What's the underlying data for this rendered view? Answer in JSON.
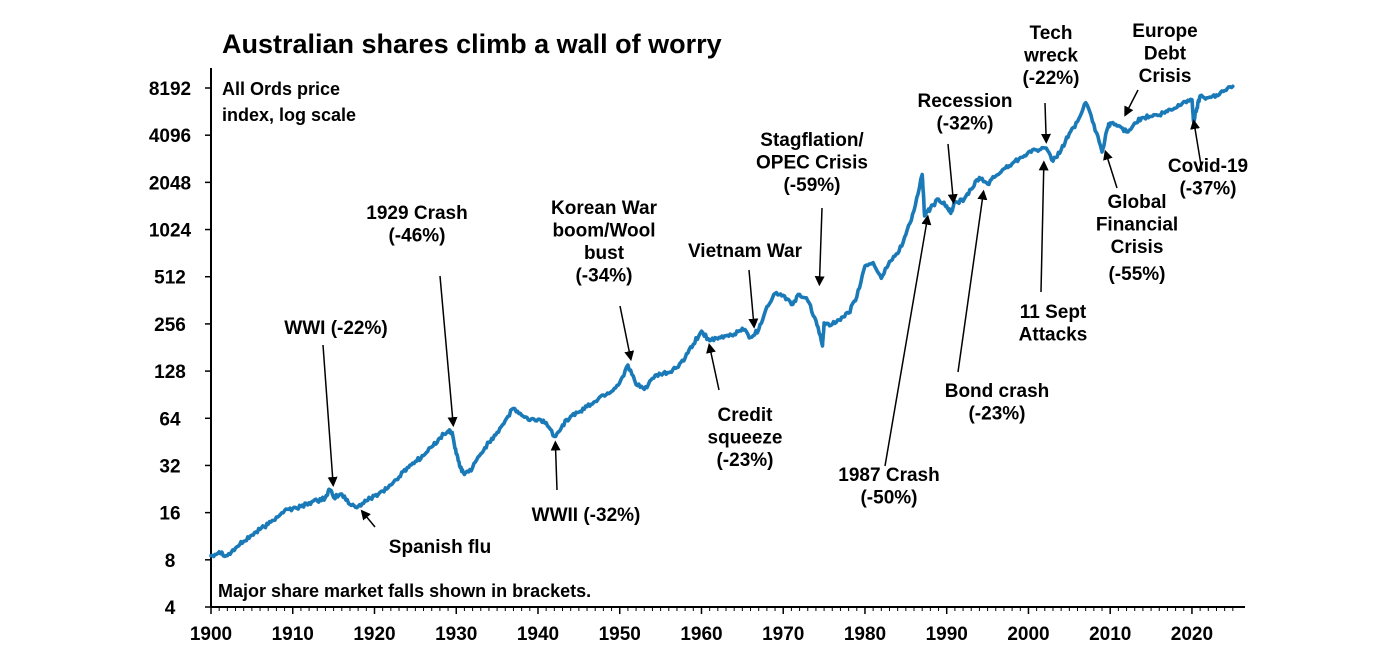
{
  "chart_data": {
    "type": "line",
    "title": "Australian shares climb a wall of worry",
    "subtitle_lines": [
      "All Ords price",
      "index, log scale"
    ],
    "footnote": "Major share market falls shown in brackets.",
    "xlabel": "",
    "ylabel": "",
    "y_scale": "log2",
    "xlim": [
      1900,
      2026
    ],
    "ylim": [
      4,
      11000
    ],
    "x_ticks": [
      "1900",
      "1910",
      "1920",
      "1930",
      "1940",
      "1950",
      "1960",
      "1970",
      "1980",
      "1990",
      "2000",
      "2010",
      "2020"
    ],
    "y_ticks": [
      "4",
      "8",
      "16",
      "32",
      "64",
      "128",
      "256",
      "512",
      "1024",
      "2048",
      "4096",
      "8192"
    ],
    "grid": false,
    "line_color": "#1a7ab8",
    "series": [
      {
        "name": "",
        "points": [
          [
            1900,
            8.5
          ],
          [
            1901,
            9
          ],
          [
            1902,
            8.5
          ],
          [
            1903,
            9.5
          ],
          [
            1904,
            10.5
          ],
          [
            1905,
            11.5
          ],
          [
            1906,
            12.5
          ],
          [
            1907,
            13.5
          ],
          [
            1908,
            15
          ],
          [
            1909,
            16.5
          ],
          [
            1910,
            17
          ],
          [
            1911,
            17.5
          ],
          [
            1912,
            18.5
          ],
          [
            1913,
            19
          ],
          [
            1914,
            20
          ],
          [
            1914.5,
            22.5
          ],
          [
            1915,
            20
          ],
          [
            1916,
            21
          ],
          [
            1917,
            18
          ],
          [
            1918,
            17.5
          ],
          [
            1919,
            19
          ],
          [
            1920,
            20.5
          ],
          [
            1921,
            22
          ],
          [
            1922,
            24
          ],
          [
            1923,
            27
          ],
          [
            1924,
            31
          ],
          [
            1925,
            34
          ],
          [
            1926,
            37
          ],
          [
            1927,
            42
          ],
          [
            1928,
            48
          ],
          [
            1929,
            53
          ],
          [
            1929.5,
            52
          ],
          [
            1930,
            38
          ],
          [
            1930.5,
            31
          ],
          [
            1931,
            28
          ],
          [
            1932,
            31
          ],
          [
            1933,
            38
          ],
          [
            1934,
            45
          ],
          [
            1935,
            52
          ],
          [
            1936,
            62
          ],
          [
            1937,
            74
          ],
          [
            1938,
            67
          ],
          [
            1939,
            62
          ],
          [
            1940,
            63
          ],
          [
            1941,
            60
          ],
          [
            1942,
            49
          ],
          [
            1943,
            58
          ],
          [
            1944,
            66
          ],
          [
            1945,
            70
          ],
          [
            1946,
            76
          ],
          [
            1947,
            82
          ],
          [
            1948,
            90
          ],
          [
            1949,
            95
          ],
          [
            1950,
            108
          ],
          [
            1951,
            140
          ],
          [
            1952,
            105
          ],
          [
            1953,
            98
          ],
          [
            1954,
            115
          ],
          [
            1955,
            122
          ],
          [
            1956,
            125
          ],
          [
            1957,
            135
          ],
          [
            1958,
            155
          ],
          [
            1959,
            190
          ],
          [
            1960,
            230
          ],
          [
            1961,
            200
          ],
          [
            1962,
            205
          ],
          [
            1963,
            215
          ],
          [
            1964,
            220
          ],
          [
            1965,
            240
          ],
          [
            1966,
            210
          ],
          [
            1967,
            235
          ],
          [
            1968,
            330
          ],
          [
            1969,
            400
          ],
          [
            1970,
            390
          ],
          [
            1971,
            340
          ],
          [
            1972,
            395
          ],
          [
            1973,
            360
          ],
          [
            1974,
            270
          ],
          [
            1974.8,
            185
          ],
          [
            1975,
            260
          ],
          [
            1976,
            255
          ],
          [
            1977,
            270
          ],
          [
            1978,
            300
          ],
          [
            1979,
            380
          ],
          [
            1980,
            600
          ],
          [
            1981,
            630
          ],
          [
            1982,
            500
          ],
          [
            1983,
            640
          ],
          [
            1984,
            720
          ],
          [
            1985,
            950
          ],
          [
            1986,
            1350
          ],
          [
            1987,
            2300
          ],
          [
            1987.3,
            1250
          ],
          [
            1988,
            1400
          ],
          [
            1989,
            1600
          ],
          [
            1990,
            1450
          ],
          [
            1990.5,
            1300
          ],
          [
            1991,
            1550
          ],
          [
            1992,
            1550
          ],
          [
            1993,
            1850
          ],
          [
            1994,
            2200
          ],
          [
            1995,
            2000
          ],
          [
            1996,
            2250
          ],
          [
            1997,
            2500
          ],
          [
            1998,
            2700
          ],
          [
            1999,
            2950
          ],
          [
            2000,
            3200
          ],
          [
            2001,
            3300
          ],
          [
            2002,
            3400
          ],
          [
            2003,
            2800
          ],
          [
            2004,
            3300
          ],
          [
            2005,
            4200
          ],
          [
            2006,
            5000
          ],
          [
            2007,
            6600
          ],
          [
            2008,
            4800
          ],
          [
            2009,
            3200
          ],
          [
            2009.7,
            4600
          ],
          [
            2010,
            4900
          ],
          [
            2011,
            4700
          ],
          [
            2012,
            4300
          ],
          [
            2013,
            4900
          ],
          [
            2014,
            5300
          ],
          [
            2015,
            5400
          ],
          [
            2016,
            5500
          ],
          [
            2017,
            5800
          ],
          [
            2018,
            6100
          ],
          [
            2019,
            6700
          ],
          [
            2020,
            6900
          ],
          [
            2020.2,
            5000
          ],
          [
            2020.6,
            6100
          ],
          [
            2021,
            7300
          ],
          [
            2022,
            7100
          ],
          [
            2023,
            7400
          ],
          [
            2024,
            7900
          ],
          [
            2025,
            8400
          ]
        ]
      }
    ],
    "annotations": [
      {
        "lines": [
          "WWI (-22%)"
        ],
        "target": [
          1915,
          22
        ]
      },
      {
        "lines": [
          "Spanish flu"
        ],
        "target": [
          1918,
          17.5
        ]
      },
      {
        "lines": [
          "1929 Crash",
          "(-46%)"
        ],
        "target": [
          1929.7,
          53
        ]
      },
      {
        "lines": [
          "WWII (-32%)"
        ],
        "target": [
          1942.1,
          49
        ]
      },
      {
        "lines": [
          "Korean War",
          "boom/Wool",
          "bust",
          "(-34%)"
        ],
        "target": [
          1951.5,
          140
        ]
      },
      {
        "lines": [
          "Credit",
          "squeeze",
          "(-23%)"
        ],
        "target": [
          1960.8,
          205
        ]
      },
      {
        "lines": [
          "Vietnam War"
        ],
        "target": [
          1966.5,
          225
        ]
      },
      {
        "lines": [
          "Stagflation/",
          "OPEC Crisis",
          "(-59%)"
        ],
        "target": [
          1974.4,
          420
        ]
      },
      {
        "lines": [
          "1987 Crash",
          "(-50%)"
        ],
        "target": [
          1987.8,
          1350
        ]
      },
      {
        "lines": [
          "Recession",
          "(-32%)"
        ],
        "target": [
          1990.9,
          1400
        ]
      },
      {
        "lines": [
          "Bond crash",
          "(-23%)"
        ],
        "target": [
          1994.6,
          1950
        ]
      },
      {
        "lines": [
          "Tech",
          "wreck",
          "(-22%)"
        ],
        "target": [
          2002.2,
          3400
        ]
      },
      {
        "lines": [
          "11 Sept",
          "Attacks"
        ],
        "target": [
          2001.9,
          3000
        ]
      },
      {
        "lines": [
          "Europe",
          "Debt",
          "Crisis"
        ],
        "target": [
          2011.5,
          5100
        ]
      },
      {
        "lines": [
          "Global",
          "Financial",
          "Crisis"
        ],
        "target": [
          2009.2,
          3500
        ]
      },
      {
        "lines": [
          "(-55%)"
        ],
        "target": null
      },
      {
        "lines": [
          "Covid-19",
          "(-37%)"
        ],
        "target": [
          2020.1,
          5500
        ]
      }
    ]
  }
}
